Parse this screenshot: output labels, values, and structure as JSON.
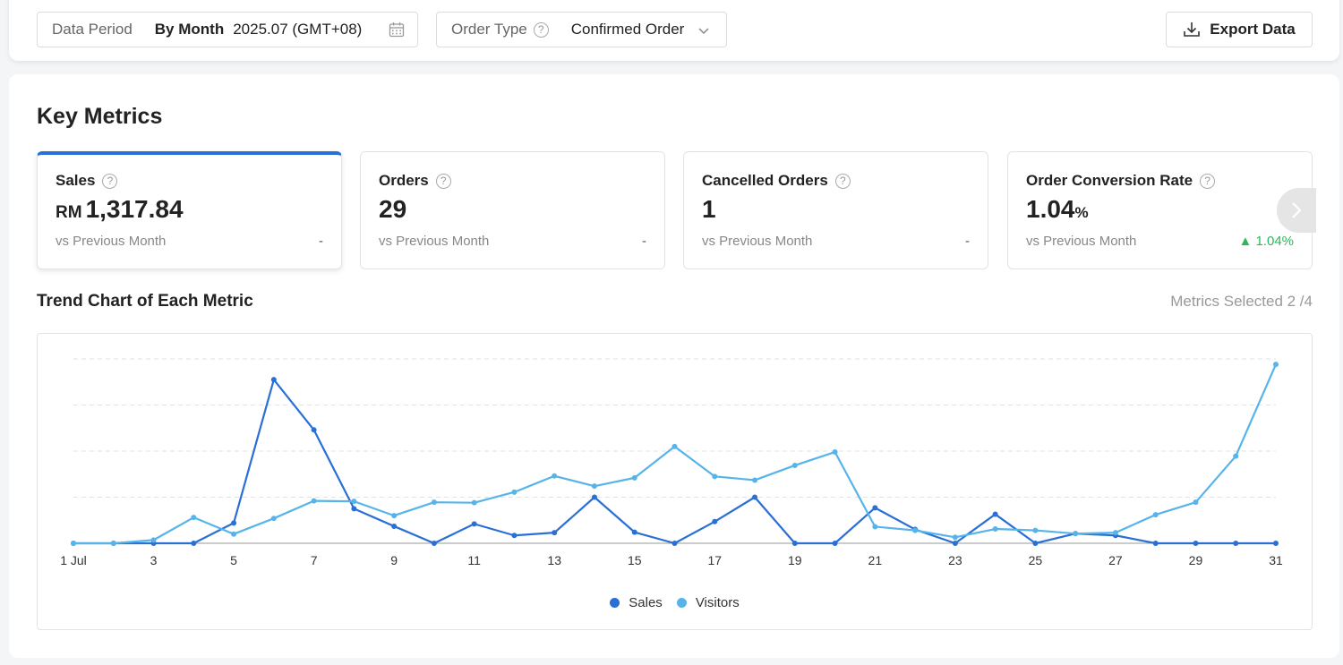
{
  "filters": {
    "period_label": "Data Period",
    "period_mode": "By Month",
    "period_value": "2025.07 (GMT+08)",
    "order_type_label": "Order Type",
    "order_type_value": "Confirmed Order",
    "export_label": "Export Data"
  },
  "key_metrics": {
    "title": "Key Metrics",
    "cards": [
      {
        "title": "Sales",
        "currency": "RM",
        "value": "1,317.84",
        "unit": "",
        "compare": "vs Previous Month",
        "change": "-",
        "trend": "none"
      },
      {
        "title": "Orders",
        "currency": "",
        "value": "29",
        "unit": "",
        "compare": "vs Previous Month",
        "change": "-",
        "trend": "none"
      },
      {
        "title": "Cancelled Orders",
        "currency": "",
        "value": "1",
        "unit": "",
        "compare": "vs Previous Month",
        "change": "-",
        "trend": "none"
      },
      {
        "title": "Order Conversion Rate",
        "currency": "",
        "value": "1.04",
        "unit": "%",
        "compare": "vs Previous Month",
        "change": "▲ 1.04%",
        "trend": "up"
      }
    ]
  },
  "trend": {
    "title": "Trend Chart of Each Metric",
    "metrics_selected": "Metrics Selected 2 /4"
  },
  "colors": {
    "accent": "#2a6fd6",
    "sales": "#2a6fd6",
    "visitors": "#56b4ea",
    "up": "#2eb85c"
  },
  "chart_data": {
    "type": "line",
    "x": [
      1,
      2,
      3,
      4,
      5,
      6,
      7,
      8,
      9,
      10,
      11,
      12,
      13,
      14,
      15,
      16,
      17,
      18,
      19,
      20,
      21,
      22,
      23,
      24,
      25,
      26,
      27,
      28,
      29,
      30,
      31
    ],
    "x_tick_labels": [
      "1 Jul",
      "3",
      "5",
      "7",
      "9",
      "11",
      "13",
      "15",
      "17",
      "19",
      "21",
      "23",
      "25",
      "27",
      "29",
      "31"
    ],
    "x_tick_positions": [
      1,
      3,
      5,
      7,
      9,
      11,
      13,
      15,
      17,
      19,
      21,
      23,
      25,
      27,
      29,
      31
    ],
    "ylim": [
      0,
      4
    ],
    "grid": true,
    "legend": "bottom-center",
    "series": [
      {
        "name": "Sales",
        "color": "#2a6fd6",
        "values": [
          0,
          0,
          0,
          0,
          0.44,
          3.55,
          2.46,
          0.75,
          0.37,
          0,
          0.42,
          0.17,
          0.23,
          1.0,
          0.24,
          0,
          0.47,
          1.0,
          0,
          0,
          0.77,
          0.3,
          0,
          0.63,
          0,
          0.21,
          0.17,
          0,
          0,
          0,
          0
        ]
      },
      {
        "name": "Visitors",
        "color": "#56b4ea",
        "values": [
          0,
          0,
          0.07,
          0.56,
          0.2,
          0.54,
          0.92,
          0.91,
          0.6,
          0.89,
          0.88,
          1.11,
          1.46,
          1.24,
          1.42,
          2.1,
          1.45,
          1.37,
          1.69,
          1.98,
          0.36,
          0.28,
          0.13,
          0.31,
          0.28,
          0.21,
          0.23,
          0.62,
          0.89,
          1.89,
          3.88
        ]
      }
    ]
  }
}
